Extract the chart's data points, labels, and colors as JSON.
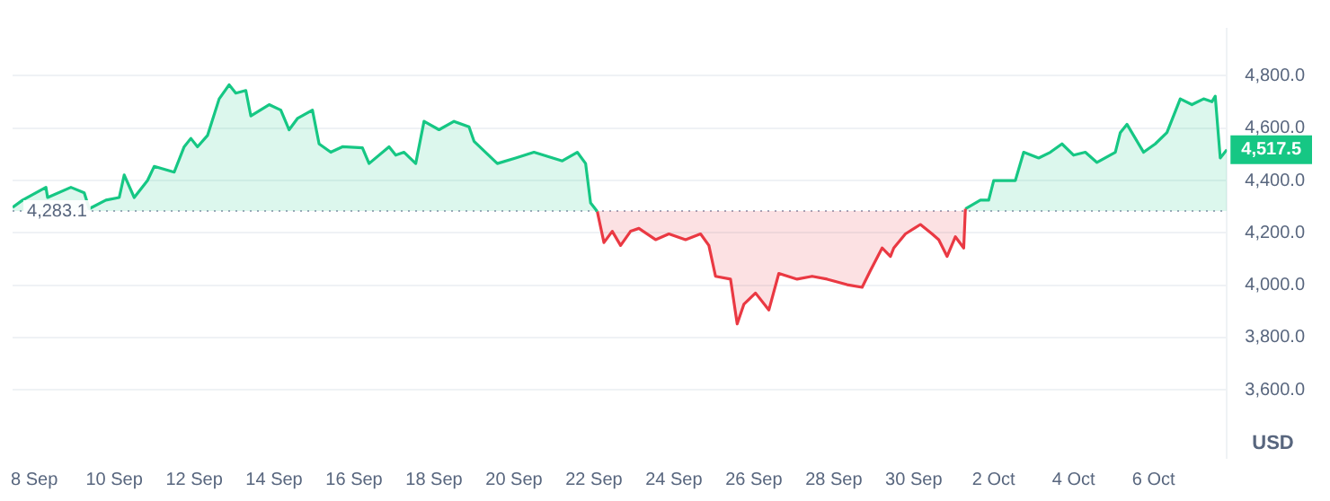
{
  "chart_data": {
    "type": "area",
    "ylabel": "USD",
    "xlim": [
      "--09-07T11:00",
      "--10-07T20:00"
    ],
    "xticks": [
      {
        "value": "--09-08",
        "label": "8 Sep"
      },
      {
        "value": "--09-10",
        "label": "10 Sep"
      },
      {
        "value": "--09-12",
        "label": "12 Sep"
      },
      {
        "value": "--09-14",
        "label": "14 Sep"
      },
      {
        "value": "--09-16",
        "label": "16 Sep"
      },
      {
        "value": "--09-18",
        "label": "18 Sep"
      },
      {
        "value": "--09-20",
        "label": "20 Sep"
      },
      {
        "value": "--09-22",
        "label": "22 Sep"
      },
      {
        "value": "--09-24",
        "label": "24 Sep"
      },
      {
        "value": "--09-26",
        "label": "26 Sep"
      },
      {
        "value": "--09-28",
        "label": "28 Sep"
      },
      {
        "value": "--09-30",
        "label": "30 Sep"
      },
      {
        "value": "--10-02",
        "label": "2 Oct"
      },
      {
        "value": "--10-04",
        "label": "4 Oct"
      },
      {
        "value": "--10-06",
        "label": "6 Oct"
      }
    ],
    "ylim": [
      3340,
      4980
    ],
    "yticks": [
      {
        "value": 3600,
        "label": "3,600.0"
      },
      {
        "value": 3800,
        "label": "3,800.0"
      },
      {
        "value": 4000,
        "label": "4,000.0"
      },
      {
        "value": 4200,
        "label": "4,200.0"
      },
      {
        "value": 4400,
        "label": "4,400.0"
      },
      {
        "value": 4600,
        "label": "4,600.0"
      },
      {
        "value": 4800,
        "label": "4,800.0"
      }
    ],
    "grid": "y",
    "legend": false,
    "marker": "none",
    "line_style": "solid",
    "ref_lines": [
      {
        "axis": "y",
        "value": 4283.1,
        "label": "4,283.1",
        "color": "#a1a7bb",
        "line_style": "dotted"
      }
    ],
    "annotations": [
      {
        "text": "4,517.5",
        "x": "--10-07T20:00",
        "y": 4517.5
      }
    ],
    "series": [
      {
        "color": "#16c784",
        "x": [
          "--09-07T11:00",
          "--09-07T17:00",
          "--09-08T07:00",
          "--09-08T08:00",
          "--09-08T22:00",
          "--09-09T06:00",
          "--09-09T09:00",
          "--09-09T19:00",
          "--09-10T03:00",
          "--09-10T06:00",
          "--09-10T12:00",
          "--09-10T20:00",
          "--09-11T00:00",
          "--09-11T12:00",
          "--09-11T18:00",
          "--09-11T22:00",
          "--09-12T02:00",
          "--09-12T08:00",
          "--09-12T15:00",
          "--09-12T21:00",
          "--09-13T01:00",
          "--09-13T07:00",
          "--09-13T10:00",
          "--09-13T21:00",
          "--09-14T04:00",
          "--09-14T09:00",
          "--09-14T14:00",
          "--09-14T23:00",
          "--09-15T03:00",
          "--09-15T10:00",
          "--09-15T17:00",
          "--09-16T05:00",
          "--09-16T09:00",
          "--09-16T21:00",
          "--09-17T01:00",
          "--09-17T06:00",
          "--09-17T13:00",
          "--09-17T18:00",
          "--09-18T03:00",
          "--09-18T12:00",
          "--09-18T21:00",
          "--09-19T00:00",
          "--09-19T14:00",
          "--09-20T01:00",
          "--09-20T12:00",
          "--09-21T05:00",
          "--09-21T14:00",
          "--09-21T19:00",
          "--09-21T22:00",
          "--09-22T02:00"
        ],
        "values": [
          4297,
          4325,
          4374,
          4335,
          4374,
          4353,
          4292,
          4325,
          4335,
          4421,
          4335,
          4400,
          4454,
          4432,
          4529,
          4561,
          4529,
          4572,
          4712,
          4766,
          4734,
          4744,
          4647,
          4690,
          4669,
          4594,
          4637,
          4669,
          4540,
          4508,
          4529,
          4525,
          4465,
          4529,
          4497,
          4508,
          4465,
          4626,
          4594,
          4626,
          4605,
          4550,
          4465,
          4486,
          4508,
          4475,
          4508,
          4465,
          4314,
          4282
        ]
      },
      {
        "color": "#ea3943",
        "x": [
          "--09-22T02:00",
          "--09-22T06:00",
          "--09-22T11:00",
          "--09-22T16:00",
          "--09-22T22:00",
          "--09-23T03:00",
          "--09-23T13:00",
          "--09-23T21:00",
          "--09-24T07:00",
          "--09-24T16:00",
          "--09-24T21:00",
          "--09-25T01:00",
          "--09-25T10:00",
          "--09-25T14:00",
          "--09-25T18:00",
          "--09-26T01:00",
          "--09-26T09:00",
          "--09-26T15:00",
          "--09-27T02:00",
          "--09-27T11:00",
          "--09-27T20:00",
          "--09-28T08:00",
          "--09-28T17:00",
          "--09-28T22:00",
          "--09-29T05:00",
          "--09-29T10:00",
          "--09-29T12:00",
          "--09-29T19:00",
          "--09-30T04:00",
          "--09-30T11:00",
          "--09-30T15:00",
          "--09-30T20:00",
          "--10-01T01:00",
          "--10-01T06:00",
          "--10-01T07:00"
        ],
        "values": [
          4282,
          4163,
          4206,
          4152,
          4206,
          4217,
          4174,
          4196,
          4174,
          4196,
          4152,
          4034,
          4023,
          3852,
          3927,
          3970,
          3905,
          4045,
          4023,
          4034,
          4023,
          4002,
          3992,
          4056,
          4142,
          4110,
          4142,
          4196,
          4232,
          4196,
          4174,
          4110,
          4185,
          4142,
          4292
        ]
      },
      {
        "color": "#16c784",
        "x": [
          "--10-01T07:00",
          "--10-01T16:00",
          "--10-01T21:00",
          "--10-02T00:00",
          "--10-02T13:00",
          "--10-02T18:00",
          "--10-03T03:00",
          "--10-03T10:00",
          "--10-03T17:00",
          "--10-04T00:00",
          "--10-04T07:00",
          "--10-04T14:00",
          "--10-05T01:00",
          "--10-05T04:00",
          "--10-05T08:00",
          "--10-05T18:00",
          "--10-06T01:00",
          "--10-06T08:00",
          "--10-06T16:00",
          "--10-06T23:00",
          "--10-07T06:00",
          "--10-07T11:00",
          "--10-07T13:00",
          "--10-07T16:00",
          "--10-07T20:00"
        ],
        "values": [
          4292,
          4325,
          4325,
          4400,
          4400,
          4508,
          4486,
          4508,
          4540,
          4497,
          4508,
          4469,
          4508,
          4583,
          4615,
          4508,
          4540,
          4583,
          4712,
          4690,
          4712,
          4701,
          4722,
          4486,
          4518
        ]
      }
    ]
  }
}
